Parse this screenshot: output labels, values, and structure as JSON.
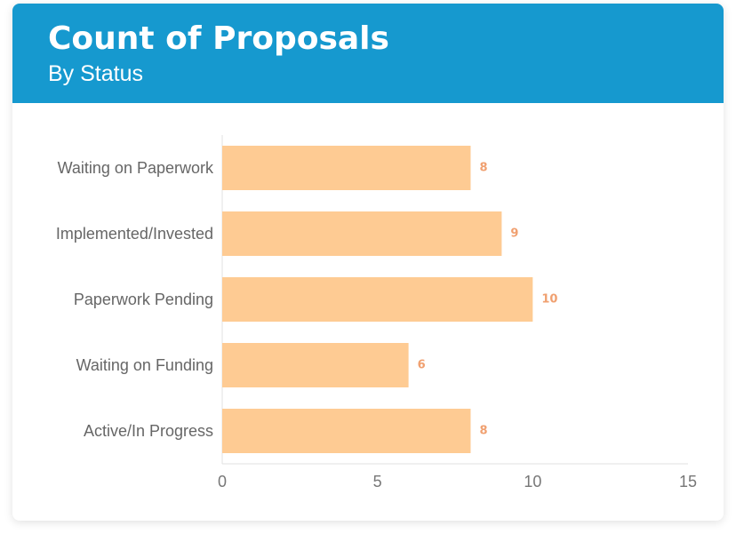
{
  "header": {
    "title": "Count of Proposals",
    "subtitle": "By Status"
  },
  "colors": {
    "header_bg": "#1699cf",
    "bar": "#fecb93",
    "data_label": "#f0a070",
    "axis": "#e2e2e2"
  },
  "chart_data": {
    "type": "bar",
    "orientation": "horizontal",
    "title": "Count of Proposals",
    "subtitle": "By Status",
    "categories": [
      "Waiting on Paperwork",
      "Implemented/Invested",
      "Paperwork Pending",
      "Waiting on Funding",
      "Active/In Progress"
    ],
    "values": [
      8,
      9,
      10,
      6,
      8
    ],
    "xlim": [
      0,
      15
    ],
    "xticks": [
      0,
      5,
      10,
      15
    ],
    "xlabel": "",
    "ylabel": "",
    "grid": false,
    "legend": "none"
  }
}
